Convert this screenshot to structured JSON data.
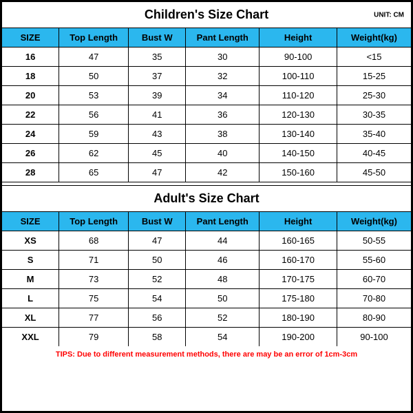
{
  "colors": {
    "header_bg": "#2bb7ee",
    "border": "#000000",
    "text": "#000000",
    "tips": "#ff0000",
    "bg": "#ffffff"
  },
  "unit_label": "UNIT: CM",
  "columns": [
    "SIZE",
    "Top Length",
    "Bust W",
    "Pant Length",
    "Height",
    "Weight(kg)"
  ],
  "children": {
    "title": "Children's Size Chart",
    "rows": [
      [
        "16",
        "47",
        "35",
        "30",
        "90-100",
        "<15"
      ],
      [
        "18",
        "50",
        "37",
        "32",
        "100-110",
        "15-25"
      ],
      [
        "20",
        "53",
        "39",
        "34",
        "110-120",
        "25-30"
      ],
      [
        "22",
        "56",
        "41",
        "36",
        "120-130",
        "30-35"
      ],
      [
        "24",
        "59",
        "43",
        "38",
        "130-140",
        "35-40"
      ],
      [
        "26",
        "62",
        "45",
        "40",
        "140-150",
        "40-45"
      ],
      [
        "28",
        "65",
        "47",
        "42",
        "150-160",
        "45-50"
      ]
    ]
  },
  "adult": {
    "title": "Adult's Size Chart",
    "rows": [
      [
        "XS",
        "68",
        "47",
        "44",
        "160-165",
        "50-55"
      ],
      [
        "S",
        "71",
        "50",
        "46",
        "160-170",
        "55-60"
      ],
      [
        "M",
        "73",
        "52",
        "48",
        "170-175",
        "60-70"
      ],
      [
        "L",
        "75",
        "54",
        "50",
        "175-180",
        "70-80"
      ],
      [
        "XL",
        "77",
        "56",
        "52",
        "180-190",
        "80-90"
      ],
      [
        "XXL",
        "79",
        "58",
        "54",
        "190-200",
        "90-100"
      ]
    ]
  },
  "tips": "TIPS: Due to different measurement methods, there are may be an error of 1cm-3cm"
}
